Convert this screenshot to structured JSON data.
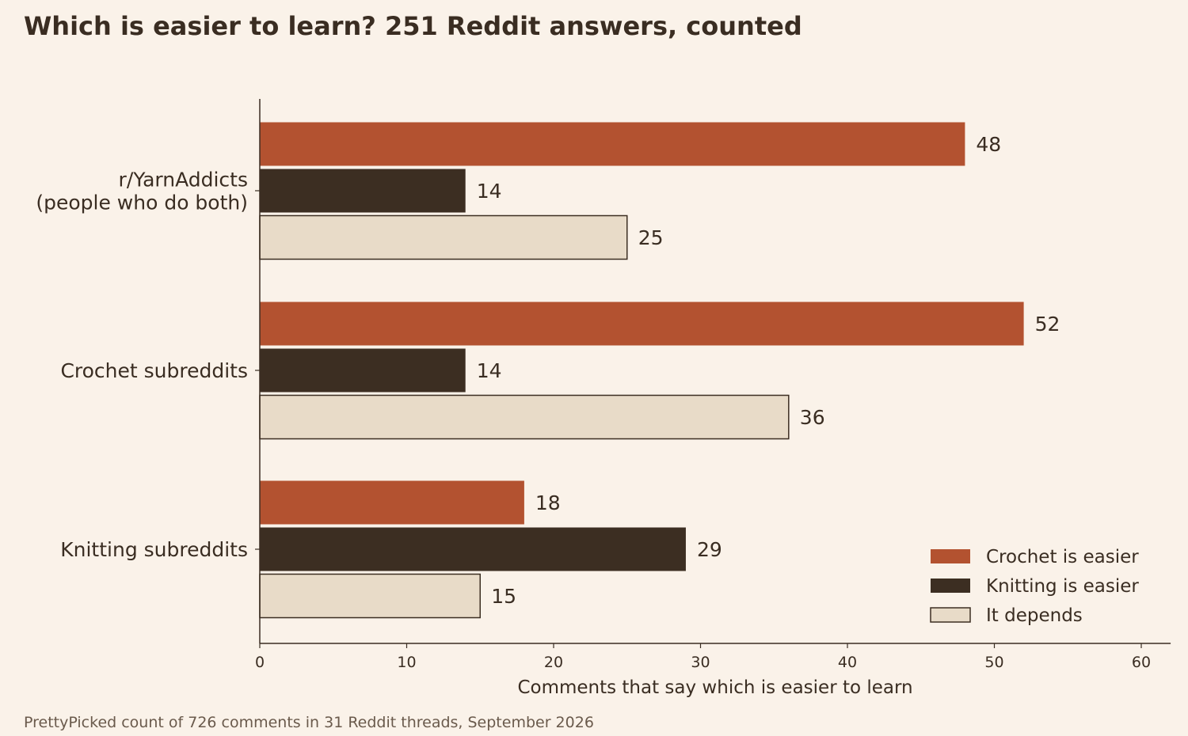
{
  "chart_data": {
    "type": "bar",
    "orientation": "horizontal",
    "title": "Which is easier to learn? 251 Reddit answers, counted",
    "xlabel": "Comments that say which is easier to learn",
    "ylabel": "",
    "categories": [
      [
        "r/YarnAddicts",
        "(people who do both)"
      ],
      [
        "Crochet subreddits"
      ],
      [
        "Knitting subreddits"
      ]
    ],
    "series": [
      {
        "name": "Crochet is easier",
        "color": "#b35230",
        "values": [
          48,
          52,
          18
        ]
      },
      {
        "name": "Knitting is easier",
        "color": "#3c2e22",
        "values": [
          14,
          14,
          29
        ]
      },
      {
        "name": "It depends",
        "color": "#e8dbc8",
        "values": [
          25,
          36,
          15
        ]
      }
    ],
    "xlim": [
      0,
      62
    ],
    "xticks": [
      0,
      10,
      20,
      30,
      40,
      50,
      60
    ],
    "grid": false,
    "legend_position": "bottom-right",
    "source": "PrettyPicked count of 726 comments in 31 Reddit threads, September 2026"
  }
}
